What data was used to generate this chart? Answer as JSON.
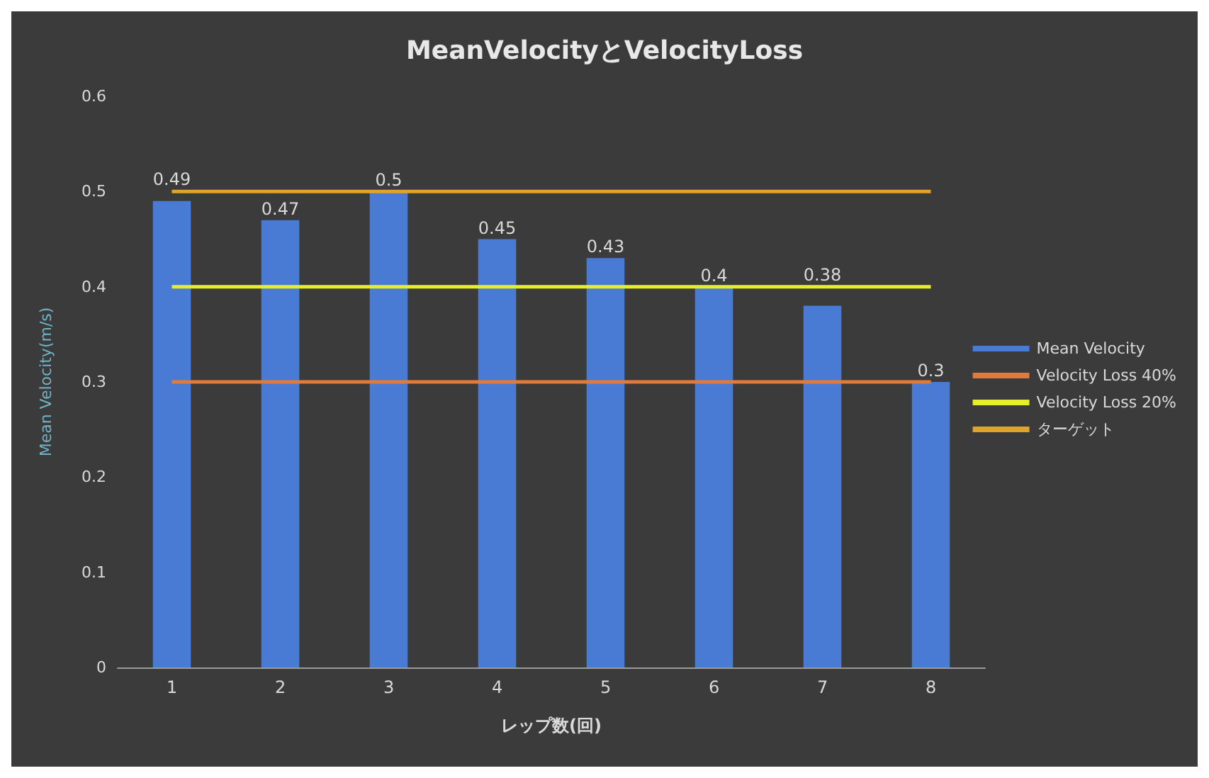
{
  "chart_data": {
    "type": "bar",
    "title": "MeanVelocityとVelocityLoss",
    "xlabel": "レップ数(回)",
    "ylabel": "Mean Velocity(m/s)",
    "categories": [
      "1",
      "2",
      "3",
      "4",
      "5",
      "6",
      "7",
      "8"
    ],
    "series": [
      {
        "name": "Mean Velocity",
        "color": "#4a7bd4",
        "values": [
          0.49,
          0.47,
          0.5,
          0.45,
          0.43,
          0.4,
          0.38,
          0.3
        ],
        "data_labels": true
      },
      {
        "name": "Velocity Loss 40%",
        "type": "line",
        "color": "#e07b3c",
        "values": [
          0.3,
          0.3,
          0.3,
          0.3,
          0.3,
          0.3,
          0.3,
          0.3
        ]
      },
      {
        "name": "Velocity Loss 20%",
        "type": "line",
        "color": "#e6ee2a",
        "values": [
          0.4,
          0.4,
          0.4,
          0.4,
          0.4,
          0.4,
          0.4,
          0.4
        ]
      },
      {
        "name": "ターゲット",
        "type": "line",
        "color": "#dfa52a",
        "values": [
          0.5,
          0.5,
          0.5,
          0.5,
          0.5,
          0.5,
          0.5,
          0.5
        ]
      }
    ],
    "ylim": [
      0,
      0.6
    ],
    "yticks": [
      0,
      0.1,
      0.2,
      0.3,
      0.4,
      0.5,
      0.6
    ],
    "grid": false,
    "legend": "right",
    "marker": "none"
  }
}
